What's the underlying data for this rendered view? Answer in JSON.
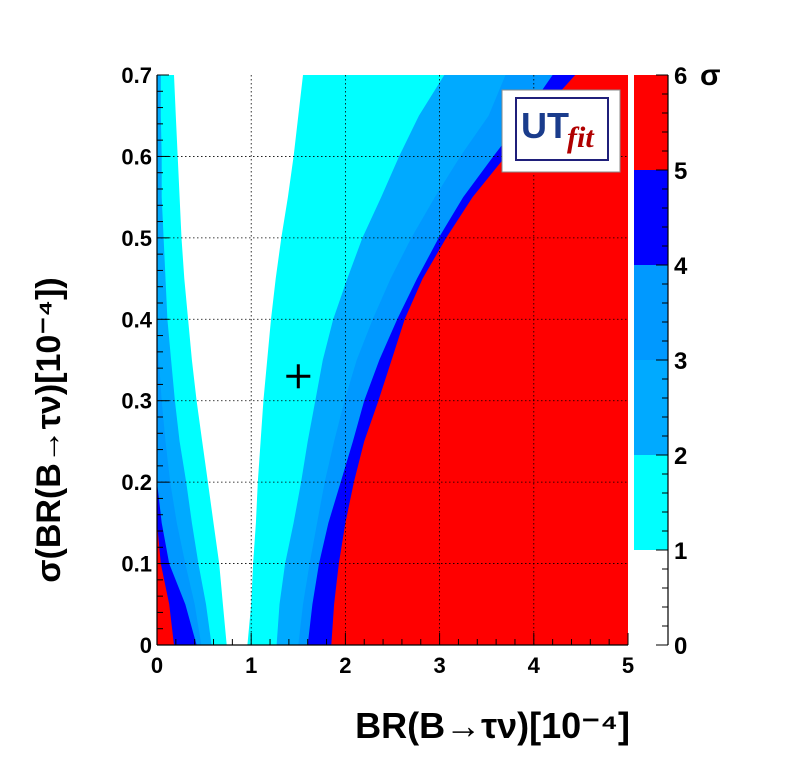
{
  "chart_data": {
    "type": "heatmap",
    "xlabel": "BR(B→τν)[10⁻⁴]",
    "ylabel": "σ(BR(B→τν)[10⁻⁴])",
    "xlim": [
      0,
      5
    ],
    "ylim": [
      0,
      0.7
    ],
    "x_ticks": [
      "0",
      "1",
      "2",
      "3",
      "4",
      "5"
    ],
    "y_ticks": [
      "0",
      "0.1",
      "0.2",
      "0.3",
      "0.4",
      "0.5",
      "0.6",
      "0.7"
    ],
    "grid": true,
    "color_axis_title": "σ",
    "colorbar_ticks": [
      "0",
      "1",
      "2",
      "3",
      "4",
      "5",
      "6"
    ],
    "bands": [
      {
        "range": [
          0,
          1
        ],
        "color": "#ffffff"
      },
      {
        "range": [
          1,
          2
        ],
        "color": "#00ffff"
      },
      {
        "range": [
          2,
          3
        ],
        "color": "#00aaff"
      },
      {
        "range": [
          3,
          4
        ],
        "color": "#0099ff"
      },
      {
        "range": [
          4,
          5
        ],
        "color": "#0000ff"
      },
      {
        "range": [
          5,
          6
        ],
        "color": "#ff0000"
      }
    ],
    "contour_y": [
      0,
      0.05,
      0.1,
      0.15,
      0.2,
      0.25,
      0.3,
      0.35,
      0.4,
      0.45,
      0.5,
      0.55,
      0.6,
      0.65,
      0.7
    ],
    "boundaries": {
      "left": {
        "sigma_5": [
          0.18,
          0.13,
          0.04,
          0,
          0,
          0,
          0,
          0,
          0,
          0,
          0,
          0,
          0,
          0,
          0
        ],
        "sigma_4": [
          0.42,
          0.3,
          0.13,
          0.05,
          0,
          0,
          0,
          0,
          0,
          0,
          0,
          0,
          0,
          0,
          0
        ],
        "sigma_3": [
          0.47,
          0.4,
          0.3,
          0.21,
          0.14,
          0.09,
          0.05,
          0.02,
          0,
          0,
          0,
          0,
          0,
          0,
          0
        ],
        "sigma_2": [
          0.58,
          0.52,
          0.44,
          0.37,
          0.31,
          0.24,
          0.19,
          0.15,
          0.11,
          0.09,
          0.07,
          0.05,
          0.05,
          0.04,
          0.04
        ],
        "sigma_1": [
          0.74,
          0.7,
          0.66,
          0.6,
          0.54,
          0.48,
          0.42,
          0.37,
          0.33,
          0.29,
          0.26,
          0.24,
          0.22,
          0.2,
          0.18
        ]
      },
      "right": {
        "sigma_1": [
          0.96,
          1.0,
          1.02,
          1.05,
          1.07,
          1.1,
          1.13,
          1.17,
          1.21,
          1.26,
          1.32,
          1.39,
          1.45,
          1.5,
          1.55
        ],
        "sigma_2": [
          1.27,
          1.3,
          1.36,
          1.45,
          1.53,
          1.6,
          1.68,
          1.76,
          1.87,
          2.02,
          2.18,
          2.38,
          2.57,
          2.78,
          3.05
        ],
        "sigma_3": [
          1.5,
          1.55,
          1.62,
          1.7,
          1.78,
          1.88,
          1.99,
          2.12,
          2.29,
          2.48,
          2.7,
          2.95,
          3.22,
          3.52,
          3.7
        ],
        "sigma_4": [
          1.6,
          1.65,
          1.72,
          1.82,
          1.95,
          2.08,
          2.2,
          2.36,
          2.55,
          2.76,
          2.99,
          3.25,
          3.57,
          3.9,
          4.2
        ],
        "sigma_5": [
          1.85,
          1.88,
          1.93,
          2.0,
          2.09,
          2.2,
          2.35,
          2.49,
          2.63,
          2.82,
          3.07,
          3.35,
          3.7,
          4.05,
          4.44
        ]
      }
    },
    "marker": {
      "x": 1.5,
      "y": 0.33
    },
    "logo": {
      "text_main": "UT",
      "text_sub": "fit"
    }
  }
}
